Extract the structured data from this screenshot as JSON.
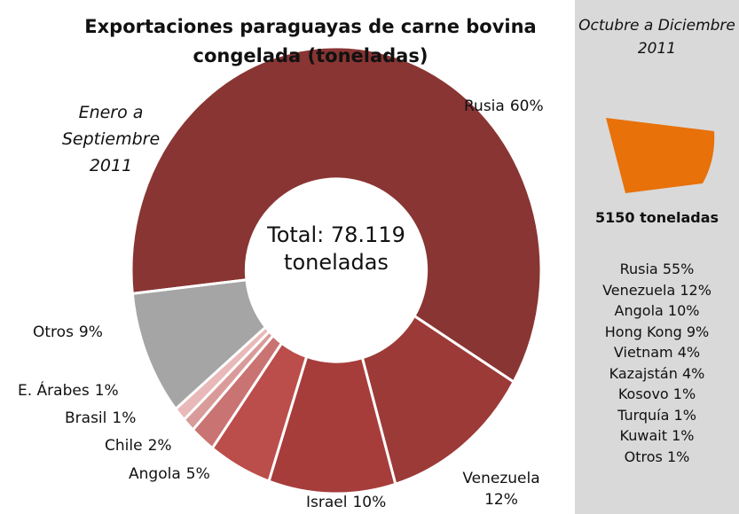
{
  "chart_data": {
    "type": "donut",
    "title": "Exportaciones paraguayas de carne bovina congelada (toneladas)",
    "period_label": "Enero a Septiembre 2011",
    "center_label": "Total: 78.119 toneladas",
    "categories": [
      "Rusia",
      "Venezuela",
      "Israel",
      "Angola",
      "Chile",
      "Brasil",
      "E. Árabes",
      "Otros"
    ],
    "values": [
      60,
      12,
      10,
      5,
      2,
      1,
      1,
      9
    ],
    "value_labels": [
      "60%",
      "12%",
      "10%",
      "5%",
      "2%",
      "1%",
      "1%",
      "9%"
    ],
    "colors": [
      "#893533",
      "#9c3a38",
      "#a63d3b",
      "#bb4d4a",
      "#c97372",
      "#d99b9a",
      "#e8b9b8",
      "#a5a5a5"
    ]
  },
  "side_panel": {
    "period_label": "Octubre a Diciembre 2011",
    "total": "5150 toneladas",
    "items": [
      "Rusia 55%",
      "Venezuela 12%",
      "Angola 10%",
      "Hong Kong 9%",
      "Vietnam 4%",
      "Kazajstán 4%",
      "Kosovo 1%",
      "Turquía 1%",
      "Kuwait 1%",
      "Otros 1%"
    ]
  }
}
